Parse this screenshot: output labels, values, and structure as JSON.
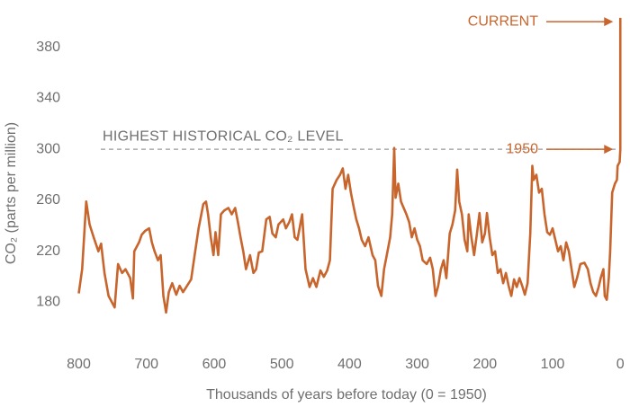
{
  "chart_data": {
    "type": "line",
    "xlabel": "Thousands of years before today (0 = 1950)",
    "ylabel": "CO₂ (parts per million)",
    "color": "#c8652d",
    "xlim": [
      810,
      -5
    ],
    "ylim": [
      155,
      417
    ],
    "xticks": [
      800,
      700,
      600,
      500,
      400,
      300,
      200,
      100,
      0
    ],
    "yticks": [
      180,
      220,
      260,
      300,
      340,
      380
    ],
    "reference_line": {
      "label": "HIGHEST HISTORICAL CO₂ LEVEL",
      "value": 300
    },
    "annotations": [
      {
        "text": "CURRENT",
        "x": 0,
        "y": 400
      },
      {
        "text": "1950",
        "x": 0,
        "y": 300
      }
    ],
    "x": [
      800,
      795,
      789,
      784,
      778,
      771,
      767,
      762,
      756,
      751,
      747,
      742,
      736,
      731,
      724,
      720,
      718,
      711,
      707,
      702,
      696,
      692,
      688,
      683,
      679,
      675,
      671,
      667,
      662,
      656,
      651,
      646,
      640,
      634,
      628,
      623,
      616,
      612,
      609,
      605,
      601,
      598,
      594,
      590,
      585,
      579,
      574,
      569,
      565,
      561,
      557,
      553,
      547,
      542,
      538,
      534,
      529,
      523,
      518,
      514,
      509,
      505,
      498,
      494,
      489,
      485,
      481,
      477,
      470,
      465,
      459,
      454,
      449,
      443,
      438,
      433,
      429,
      425,
      419,
      414,
      410,
      406,
      402,
      398,
      394,
      390,
      386,
      382,
      377,
      372,
      366,
      362,
      358,
      353,
      349,
      345,
      340,
      337,
      334,
      332,
      328,
      324,
      320,
      316,
      312,
      308,
      304,
      300,
      296,
      292,
      286,
      281,
      277,
      273,
      269,
      265,
      261,
      257,
      252,
      248,
      244,
      241,
      238,
      234,
      230,
      226,
      224,
      220,
      216,
      212,
      208,
      204,
      200,
      197,
      193,
      189,
      185,
      181,
      177,
      173,
      169,
      165,
      161,
      157,
      153,
      149,
      145,
      141,
      137,
      133,
      130,
      128,
      124,
      120,
      116,
      112,
      108,
      104,
      100,
      96,
      92,
      88,
      84,
      80,
      76,
      72,
      68,
      64,
      59,
      53,
      48,
      44,
      40,
      36,
      32,
      29,
      25,
      23,
      20,
      17,
      15,
      12,
      8,
      5,
      4,
      1,
      0,
      0
    ],
    "values": [
      187,
      206,
      259,
      241,
      231,
      220,
      226,
      203,
      185,
      180,
      176,
      210,
      203,
      206,
      199,
      183,
      220,
      227,
      233,
      236,
      238,
      227,
      220,
      213,
      217,
      185,
      172,
      188,
      195,
      186,
      193,
      188,
      193,
      198,
      220,
      238,
      257,
      259,
      249,
      231,
      217,
      235,
      217,
      249,
      252,
      254,
      249,
      254,
      243,
      231,
      220,
      206,
      217,
      203,
      206,
      219,
      220,
      245,
      247,
      234,
      231,
      241,
      245,
      238,
      243,
      249,
      231,
      229,
      249,
      206,
      192,
      199,
      192,
      205,
      200,
      205,
      213,
      269,
      276,
      280,
      285,
      269,
      280,
      266,
      255,
      245,
      238,
      229,
      224,
      231,
      217,
      213,
      193,
      185,
      206,
      217,
      231,
      249,
      301,
      262,
      273,
      259,
      254,
      249,
      243,
      231,
      238,
      229,
      224,
      213,
      210,
      215,
      206,
      185,
      193,
      206,
      213,
      199,
      234,
      241,
      252,
      284,
      259,
      249,
      229,
      220,
      249,
      231,
      217,
      233,
      250,
      227,
      234,
      250,
      231,
      217,
      220,
      203,
      206,
      195,
      203,
      193,
      185,
      198,
      192,
      199,
      193,
      186,
      195,
      234,
      287,
      276,
      280,
      266,
      269,
      249,
      235,
      233,
      238,
      229,
      220,
      224,
      213,
      227,
      220,
      206,
      192,
      199,
      210,
      211,
      206,
      195,
      188,
      185,
      192,
      199,
      206,
      185,
      182,
      199,
      220,
      266,
      273,
      276,
      287,
      290,
      300,
      403
    ]
  }
}
